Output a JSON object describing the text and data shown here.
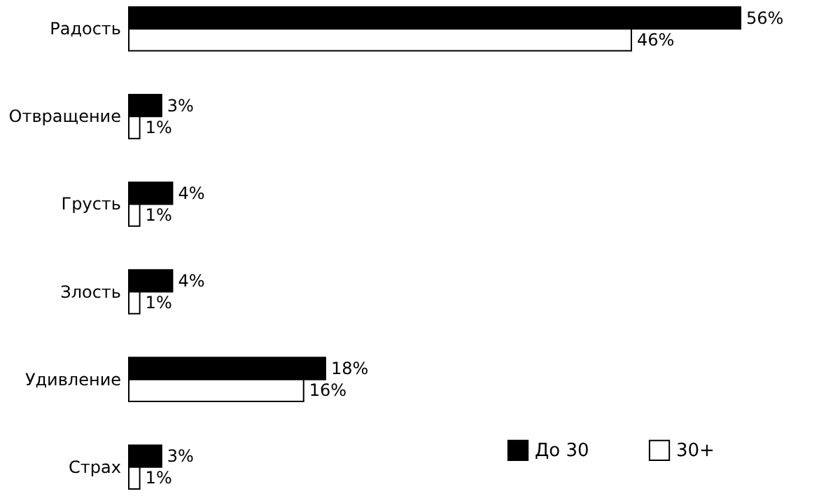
{
  "chart_data": {
    "type": "bar",
    "orientation": "horizontal",
    "categories": [
      "Радость",
      "Отвращение",
      "Грусть",
      "Злость",
      "Удивление",
      "Страх"
    ],
    "series": [
      {
        "name": "До 30",
        "color": "#000000",
        "values": [
          56,
          3,
          4,
          4,
          18,
          3
        ],
        "value_labels": [
          "56%",
          "3%",
          "4%",
          "4%",
          "18%",
          "3%"
        ]
      },
      {
        "name": "30+",
        "color": "#ffffff",
        "values": [
          46,
          1,
          1,
          1,
          16,
          1
        ],
        "value_labels": [
          "46%",
          "1%",
          "1%",
          "1%",
          "16%",
          "1%"
        ]
      }
    ],
    "legend": "bottom right",
    "grid": false
  }
}
